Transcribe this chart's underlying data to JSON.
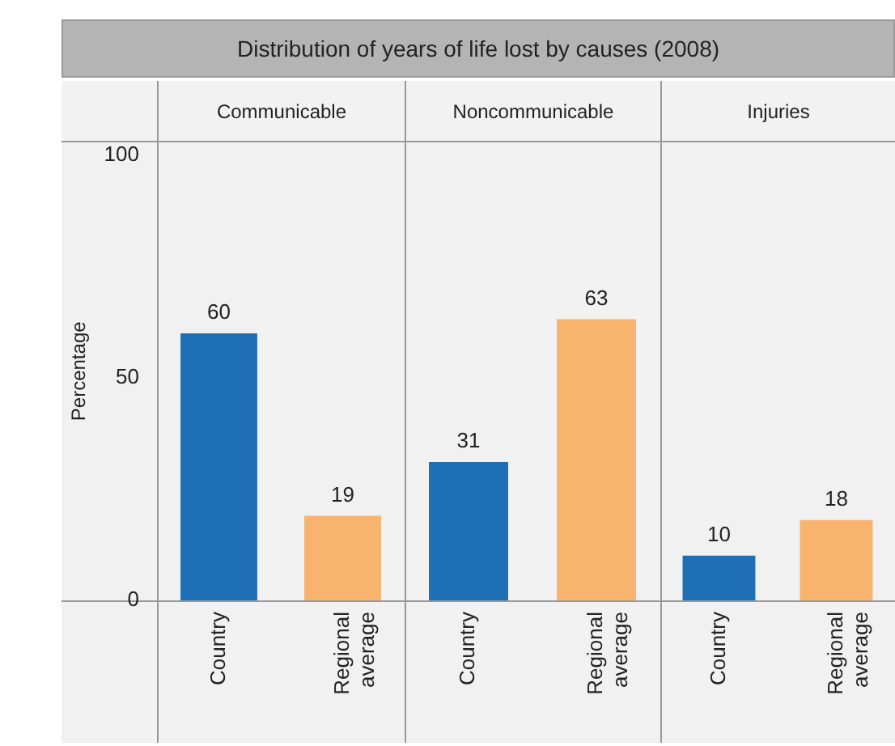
{
  "chart_data": [
    {
      "type": "bar",
      "title": "Distribution of years of life lost by causes (2008)",
      "subtitle": "Communicable",
      "ylabel": "Percentage",
      "categories": [
        "Country",
        "Regional average"
      ],
      "values": [
        60,
        19
      ],
      "colors": [
        "#1f6fb4",
        "#f8b36e"
      ],
      "ylim": [
        0,
        103
      ],
      "yticks": [
        0,
        50,
        100
      ],
      "data_labels": true,
      "grid": false,
      "legend": false
    },
    {
      "type": "bar",
      "subtitle": "Noncommunicable",
      "categories": [
        "Country",
        "Regional average"
      ],
      "values": [
        31,
        63
      ],
      "colors": [
        "#1f6fb4",
        "#f8b36e"
      ],
      "ylim": [
        0,
        103
      ],
      "yticks": [
        0,
        50,
        100
      ],
      "data_labels": true,
      "grid": false,
      "legend": false,
      "tick_labels": "x"
    },
    {
      "type": "bar",
      "subtitle": "Injuries",
      "categories": [
        "Country",
        "Regional average"
      ],
      "values": [
        10,
        18
      ],
      "colors": [
        "#1f6fb4",
        "#f8b36e"
      ],
      "ylim": [
        0,
        103
      ],
      "yticks": [
        0,
        50,
        100
      ],
      "data_labels": true,
      "grid": false,
      "legend": false,
      "tick_labels": "x"
    }
  ]
}
